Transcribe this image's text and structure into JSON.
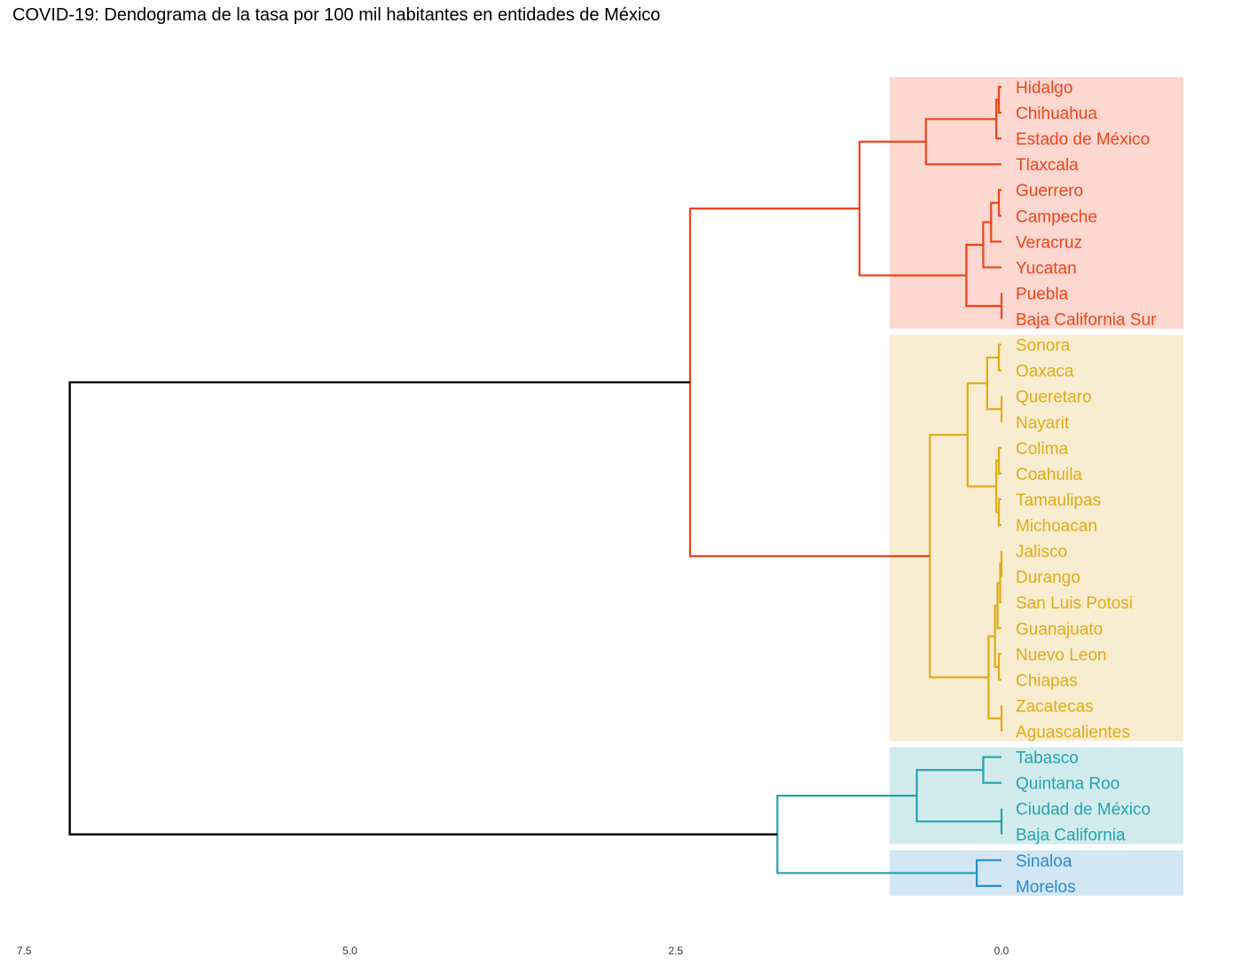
{
  "title": "COVID-19: Dendograma de la tasa por 100 mil habitantes en entidades de México",
  "colors": {
    "red": "#f0441b",
    "red_bg": "#fcd8d0",
    "yellow": "#e0ab18",
    "yellow_bg": "#f8edd0",
    "teal": "#23a5ae",
    "teal_bg": "#d2ecee",
    "blue": "#2a8ad4",
    "blue_bg": "#d2e6f4",
    "root": "#000000"
  },
  "chart_data": {
    "type": "dendrogram",
    "title": "COVID-19: Dendograma de la tasa por 100 mil habitantes en entidades de México",
    "xlim": [
      7.5,
      0
    ],
    "x_ticks": [
      {
        "value": 7.5,
        "label": "7.5"
      },
      {
        "value": 5.0,
        "label": "5.0"
      },
      {
        "value": 2.5,
        "label": "2.5"
      },
      {
        "value": 0.0,
        "label": "0.0"
      }
    ],
    "leaves": [
      {
        "label": "Hidalgo",
        "cluster": "red"
      },
      {
        "label": "Chihuahua",
        "cluster": "red"
      },
      {
        "label": "Estado de México",
        "cluster": "red"
      },
      {
        "label": "Tlaxcala",
        "cluster": "red"
      },
      {
        "label": "Guerrero",
        "cluster": "red"
      },
      {
        "label": "Campeche",
        "cluster": "red"
      },
      {
        "label": "Veracruz",
        "cluster": "red"
      },
      {
        "label": "Yucatan",
        "cluster": "red"
      },
      {
        "label": "Puebla",
        "cluster": "red"
      },
      {
        "label": "Baja California Sur",
        "cluster": "red"
      },
      {
        "label": "Sonora",
        "cluster": "yellow"
      },
      {
        "label": "Oaxaca",
        "cluster": "yellow"
      },
      {
        "label": "Queretaro",
        "cluster": "yellow"
      },
      {
        "label": "Nayarit",
        "cluster": "yellow"
      },
      {
        "label": "Colima",
        "cluster": "yellow"
      },
      {
        "label": "Coahuila",
        "cluster": "yellow"
      },
      {
        "label": "Tamaulipas",
        "cluster": "yellow"
      },
      {
        "label": "Michoacan",
        "cluster": "yellow"
      },
      {
        "label": "Jalisco",
        "cluster": "yellow"
      },
      {
        "label": "Durango",
        "cluster": "yellow"
      },
      {
        "label": "San Luis Potosi",
        "cluster": "yellow"
      },
      {
        "label": "Guanajuato",
        "cluster": "yellow"
      },
      {
        "label": "Nuevo Leon",
        "cluster": "yellow"
      },
      {
        "label": "Chiapas",
        "cluster": "yellow"
      },
      {
        "label": "Zacatecas",
        "cluster": "yellow"
      },
      {
        "label": "Aguascalientes",
        "cluster": "yellow"
      },
      {
        "label": "Tabasco",
        "cluster": "teal"
      },
      {
        "label": "Quintana Roo",
        "cluster": "teal"
      },
      {
        "label": "Ciudad de México",
        "cluster": "teal"
      },
      {
        "label": "Baja California",
        "cluster": "teal"
      },
      {
        "label": "Sinaloa",
        "cluster": "blue"
      },
      {
        "label": "Morelos",
        "cluster": "blue"
      }
    ],
    "clusters": [
      {
        "id": "red",
        "first": 0,
        "last": 9
      },
      {
        "id": "yellow",
        "first": 10,
        "last": 25
      },
      {
        "id": "teal",
        "first": 26,
        "last": 29
      },
      {
        "id": "blue",
        "first": 30,
        "last": 31
      }
    ],
    "merges": [
      {
        "left": "Hidalgo",
        "right": "Chihuahua",
        "height": 0.02,
        "color": "red"
      },
      {
        "left": "Hidalgo+Chihuahua",
        "right": "Estado de México",
        "height": 0.04,
        "color": "red"
      },
      {
        "left": "Hidalgo+Chihuahua+Estado de México",
        "right": "Tlaxcala",
        "height": 0.58,
        "color": "red"
      },
      {
        "left": "Guerrero",
        "right": "Campeche",
        "height": 0.02,
        "color": "red"
      },
      {
        "left": "Guerrero+Campeche",
        "right": "Veracruz",
        "height": 0.08,
        "color": "red"
      },
      {
        "left": "Guerrero+Campeche+Veracruz",
        "right": "Yucatan",
        "height": 0.14,
        "color": "red"
      },
      {
        "left": "Puebla",
        "right": "Baja California Sur",
        "height": 0.0,
        "color": "red"
      },
      {
        "left": "Guerrero..Yucatan",
        "right": "Puebla+Baja California Sur",
        "height": 0.27,
        "color": "red"
      },
      {
        "left": "Hidalgo..Tlaxcala",
        "right": "Guerrero..Baja California Sur",
        "height": 1.09,
        "color": "red"
      },
      {
        "left": "Sonora",
        "right": "Oaxaca",
        "height": 0.02,
        "color": "yellow"
      },
      {
        "left": "Queretaro",
        "right": "Nayarit",
        "height": 0.0,
        "color": "yellow"
      },
      {
        "left": "Sonora+Oaxaca",
        "right": "Queretaro+Nayarit",
        "height": 0.11,
        "color": "yellow"
      },
      {
        "left": "Colima",
        "right": "Coahuila",
        "height": 0.02,
        "color": "yellow"
      },
      {
        "left": "Tamaulipas",
        "right": "Michoacan",
        "height": 0.02,
        "color": "yellow"
      },
      {
        "left": "Colima+Coahuila",
        "right": "Tamaulipas+Michoacan",
        "height": 0.04,
        "color": "yellow"
      },
      {
        "left": "Sonora..Nayarit",
        "right": "Colima..Michoacan",
        "height": 0.26,
        "color": "yellow"
      },
      {
        "left": "Jalisco",
        "right": "Durango",
        "height": 0.0,
        "color": "yellow"
      },
      {
        "left": "Jalisco+Durango",
        "right": "San Luis Potosi",
        "height": 0.01,
        "color": "yellow"
      },
      {
        "left": "Jalisco..San Luis Potosi",
        "right": "Guanajuato",
        "height": 0.03,
        "color": "yellow"
      },
      {
        "left": "Nuevo Leon",
        "right": "Chiapas",
        "height": 0.02,
        "color": "yellow"
      },
      {
        "left": "Jalisco..Guanajuato",
        "right": "Nuevo Leon+Chiapas",
        "height": 0.05,
        "color": "yellow"
      },
      {
        "left": "Zacatecas",
        "right": "Aguascalientes",
        "height": 0.0,
        "color": "yellow"
      },
      {
        "left": "Jalisco..Chiapas",
        "right": "Zacatecas+Aguascalientes",
        "height": 0.1,
        "color": "yellow"
      },
      {
        "left": "Sonora..Michoacan",
        "right": "Jalisco..Aguascalientes",
        "height": 0.55,
        "color": "yellow"
      },
      {
        "left": "Red cluster",
        "right": "Yellow cluster",
        "height": 2.39,
        "color": "red"
      },
      {
        "left": "Tabasco",
        "right": "Quintana Roo",
        "height": 0.14,
        "color": "teal"
      },
      {
        "left": "Ciudad de México",
        "right": "Baja California",
        "height": 0.0,
        "color": "teal"
      },
      {
        "left": "Tabasco+Quintana Roo",
        "right": "Ciudad de México+Baja California",
        "height": 0.65,
        "color": "teal"
      },
      {
        "left": "Sinaloa",
        "right": "Morelos",
        "height": 0.19,
        "color": "blue"
      },
      {
        "left": "Teal cluster",
        "right": "Blue cluster",
        "height": 1.72,
        "color": "teal"
      },
      {
        "left": "Red+Yellow",
        "right": "Teal+Blue",
        "height": 7.15,
        "color": "root"
      }
    ]
  }
}
